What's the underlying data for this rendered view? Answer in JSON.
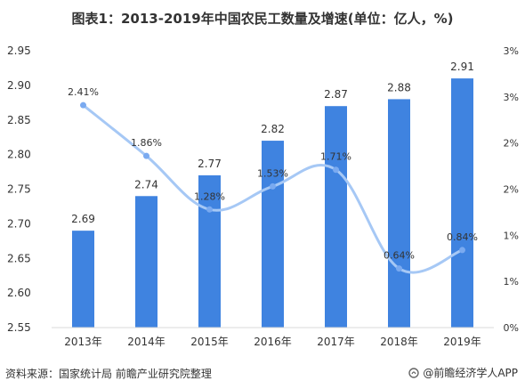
{
  "title": "图表1：2013-2019年中国农民工数量及增速(单位：亿人，%)",
  "source": "资料来源：国家统计局 前瞻产业研究院整理",
  "brand": "@前瞻经济学人APP",
  "colors": {
    "bar": "#3f83e0",
    "line": "#a6c8f5",
    "marker": "#7aaaf0",
    "text": "#333333"
  },
  "chart_data": {
    "type": "bar",
    "categories": [
      "2013年",
      "2014年",
      "2015年",
      "2016年",
      "2017年",
      "2018年",
      "2019年"
    ],
    "series": [
      {
        "values": [
          2.69,
          2.74,
          2.77,
          2.82,
          2.87,
          2.88,
          2.91
        ],
        "labels": [
          "2.69",
          "2.74",
          "2.77",
          "2.82",
          "2.87",
          "2.88",
          "2.91"
        ]
      },
      {
        "type": "line",
        "axis": "right",
        "values": [
          2.41,
          1.86,
          1.28,
          1.53,
          1.71,
          0.64,
          0.84
        ],
        "labels": [
          "2.41%",
          "1.86%",
          "1.28%",
          "1.53%",
          "1.71%",
          "0.64%",
          "0.84%"
        ]
      }
    ],
    "y_left": {
      "ticks": [
        "2.95",
        "2.90",
        "2.85",
        "2.80",
        "2.75",
        "2.70",
        "2.65",
        "2.60",
        "2.55"
      ],
      "min": 2.55,
      "max": 2.95
    },
    "y_right": {
      "ticks": [
        "3%",
        "3%",
        "2%",
        "2%",
        "1%",
        "1%",
        "0%"
      ],
      "min": 0,
      "max": 3
    },
    "grid": false,
    "legend": "none"
  }
}
